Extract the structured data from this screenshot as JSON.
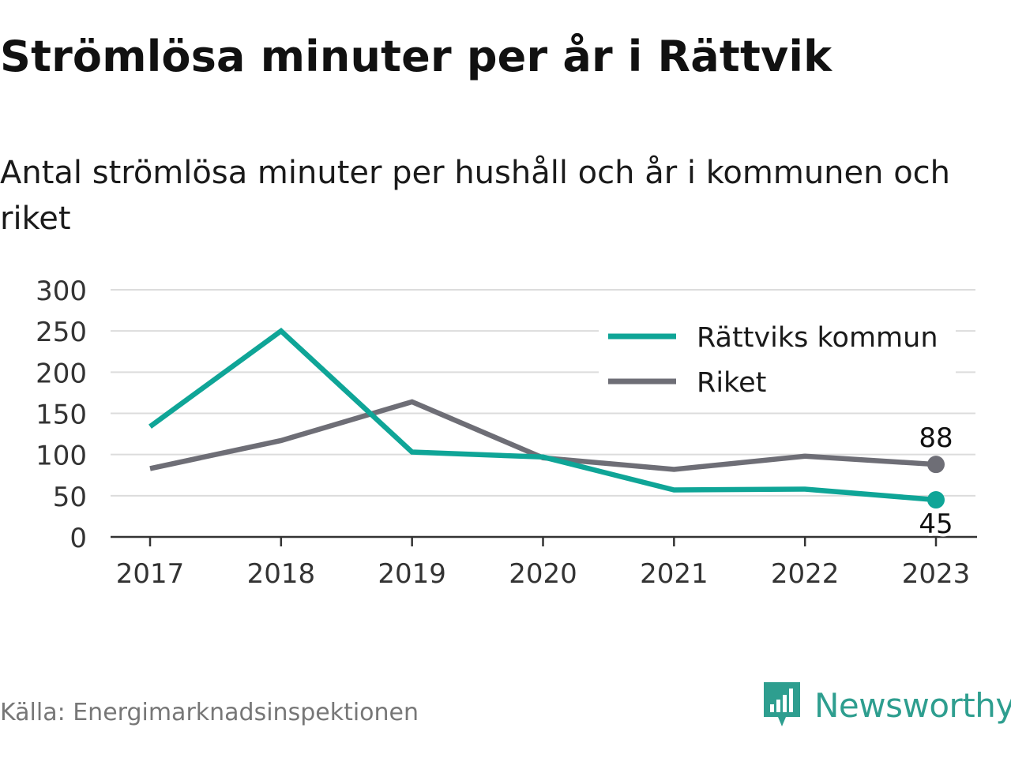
{
  "title": "Strömlösa minuter per år i Rättvik",
  "subtitle": "Antal strömlösa minuter per hushåll och år i kommunen och riket",
  "source": "Källa: Energimarknadsinspektionen",
  "brand": {
    "name": "Newsworthy",
    "icon": "newsworthy-logo-icon",
    "color": "#2e9e8f"
  },
  "chart_data": {
    "type": "line",
    "title": "Strömlösa minuter per år i Rättvik",
    "subtitle": "Antal strömlösa minuter per hushåll och år i kommunen och riket",
    "x": [
      "2017",
      "2018",
      "2019",
      "2020",
      "2021",
      "2022",
      "2023"
    ],
    "ylim": [
      0,
      300
    ],
    "yticks": [
      0,
      50,
      100,
      150,
      200,
      250,
      300
    ],
    "grid": true,
    "legend_position": "top-right",
    "series": [
      {
        "name": "Rättviks kommun",
        "color": "#0fa597",
        "values": [
          134,
          250,
          103,
          97,
          57,
          58,
          45
        ],
        "end_label": "45"
      },
      {
        "name": "Riket",
        "color": "#6e6e76",
        "values": [
          83,
          117,
          164,
          96,
          82,
          98,
          88
        ],
        "end_label": "88"
      }
    ]
  }
}
